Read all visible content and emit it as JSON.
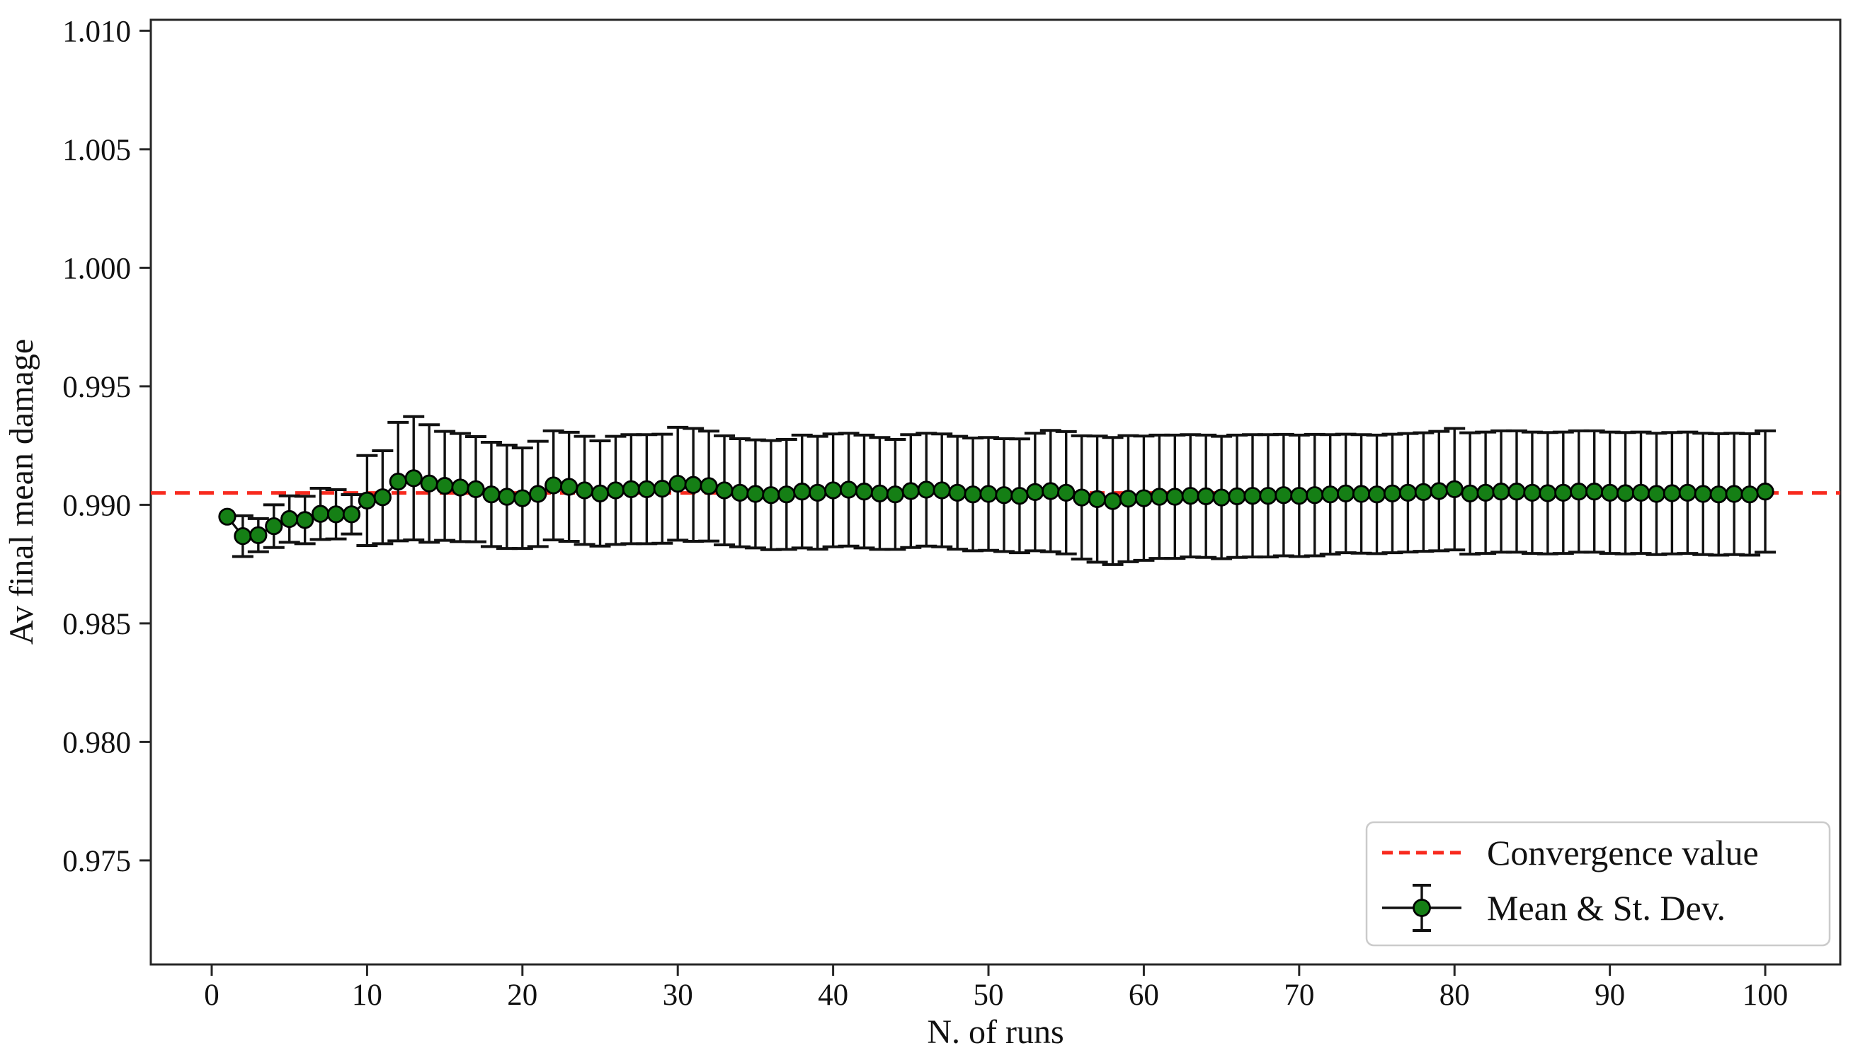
{
  "figure": {
    "background": "#ffffff"
  },
  "colors": {
    "convergence_line": "#f82a1e",
    "marker_fill": "#157f15",
    "marker_edge": "#000000",
    "errorbar": "#111111",
    "series_line": "#111111",
    "spine": "#262626",
    "tick_text": "#111111",
    "legend_border": "#cbcbcb",
    "legend_background": "#ffffff"
  },
  "legend": {
    "items": [
      {
        "label": "Convergence value",
        "symbol": "dashed-line"
      },
      {
        "label": "Mean & St. Dev.",
        "symbol": "errorbar-marker"
      }
    ]
  },
  "chart_data": {
    "type": "line",
    "subtype": "errorbar-convergence-plot",
    "title": "",
    "xlabel": "N. of runs",
    "ylabel": "Av final mean damage",
    "grid": false,
    "legend_position": "lower right",
    "legend_entries": [
      "Convergence value",
      "Mean & St. Dev."
    ],
    "convergence_value": 0.9905,
    "xlim": [
      -3.92,
      104.83
    ],
    "ylim": [
      0.97061,
      1.01046
    ],
    "x_ticks": [
      0,
      10,
      20,
      30,
      40,
      50,
      60,
      70,
      80,
      90,
      100
    ],
    "y_ticks": [
      0.975,
      0.98,
      0.985,
      0.99,
      0.995,
      1.0,
      1.005,
      1.01
    ],
    "y_tick_labels": [
      "0.975",
      "0.980",
      "0.985",
      "0.990",
      "0.995",
      "1.000",
      "1.005",
      "1.010"
    ],
    "series": [
      {
        "name": "Mean & St. Dev.",
        "x": [
          1,
          2,
          3,
          4,
          5,
          6,
          7,
          8,
          9,
          10,
          11,
          12,
          13,
          14,
          15,
          16,
          17,
          18,
          19,
          20,
          21,
          22,
          23,
          24,
          25,
          26,
          27,
          28,
          29,
          30,
          31,
          32,
          33,
          34,
          35,
          36,
          37,
          38,
          39,
          40,
          41,
          42,
          43,
          44,
          45,
          46,
          47,
          48,
          49,
          50,
          51,
          52,
          53,
          54,
          55,
          56,
          57,
          58,
          59,
          60,
          61,
          62,
          63,
          64,
          65,
          66,
          67,
          68,
          69,
          70,
          71,
          72,
          73,
          74,
          75,
          76,
          77,
          78,
          79,
          80,
          81,
          82,
          83,
          84,
          85,
          86,
          87,
          88,
          89,
          90,
          91,
          92,
          93,
          94,
          95,
          96,
          97,
          98,
          99,
          100
        ],
        "mean": [
          0.9895,
          0.98868,
          0.98872,
          0.9891,
          0.9894,
          0.98936,
          0.98962,
          0.9896,
          0.9896,
          0.99018,
          0.99032,
          0.99098,
          0.99112,
          0.9909,
          0.9908,
          0.99073,
          0.99066,
          0.99044,
          0.99034,
          0.99028,
          0.99046,
          0.99082,
          0.99076,
          0.99061,
          0.99048,
          0.99061,
          0.99066,
          0.99066,
          0.99068,
          0.99089,
          0.99084,
          0.99079,
          0.99061,
          0.99051,
          0.99046,
          0.99041,
          0.99044,
          0.99056,
          0.99051,
          0.99061,
          0.99064,
          0.99056,
          0.99048,
          0.99044,
          0.99058,
          0.99064,
          0.99061,
          0.99051,
          0.99044,
          0.99046,
          0.99041,
          0.99038,
          0.99054,
          0.99058,
          0.99051,
          0.99031,
          0.99024,
          0.99016,
          0.99026,
          0.99028,
          0.99034,
          0.99034,
          0.99038,
          0.99036,
          0.99031,
          0.99036,
          0.99038,
          0.99038,
          0.99041,
          0.99038,
          0.99041,
          0.99044,
          0.99048,
          0.99046,
          0.99044,
          0.99048,
          0.99051,
          0.99054,
          0.99058,
          0.99066,
          0.99048,
          0.99051,
          0.99056,
          0.99056,
          0.99051,
          0.99049,
          0.99051,
          0.99056,
          0.99056,
          0.99051,
          0.99049,
          0.99051,
          0.99046,
          0.99049,
          0.99051,
          0.99046,
          0.99044,
          0.99046,
          0.99044,
          0.99056
        ],
        "std": [
          0.0,
          0.00086,
          0.0007,
          0.0009,
          0.00098,
          0.001,
          0.00108,
          0.00104,
          0.00083,
          0.0019,
          0.00196,
          0.0025,
          0.0026,
          0.00248,
          0.0023,
          0.00228,
          0.00222,
          0.0022,
          0.00218,
          0.00212,
          0.00222,
          0.0023,
          0.0023,
          0.00228,
          0.00222,
          0.00228,
          0.0023,
          0.0023,
          0.0023,
          0.00238,
          0.00238,
          0.00232,
          0.0023,
          0.00228,
          0.00228,
          0.0023,
          0.00232,
          0.00238,
          0.00238,
          0.00238,
          0.00238,
          0.00238,
          0.00236,
          0.00232,
          0.00238,
          0.00238,
          0.00238,
          0.00238,
          0.00238,
          0.00238,
          0.00238,
          0.0024,
          0.00248,
          0.00256,
          0.00258,
          0.0026,
          0.00266,
          0.00268,
          0.00266,
          0.00262,
          0.0026,
          0.0026,
          0.00258,
          0.00258,
          0.00258,
          0.00258,
          0.00258,
          0.00258,
          0.00256,
          0.00256,
          0.00256,
          0.00252,
          0.0025,
          0.0025,
          0.0025,
          0.0025,
          0.0025,
          0.0025,
          0.00252,
          0.00256,
          0.00256,
          0.00256,
          0.00256,
          0.00256,
          0.00256,
          0.00256,
          0.00256,
          0.00256,
          0.00256,
          0.00256,
          0.00256,
          0.00256,
          0.00256,
          0.00256,
          0.00256,
          0.00256,
          0.00256,
          0.00256,
          0.00256,
          0.00256
        ]
      }
    ]
  }
}
